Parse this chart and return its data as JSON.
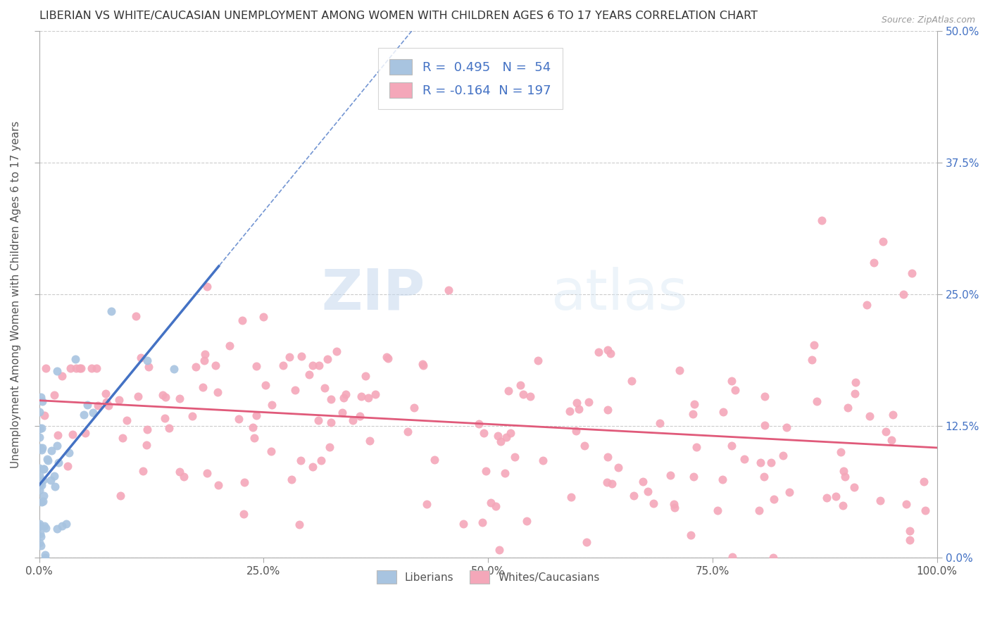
{
  "title": "LIBERIAN VS WHITE/CAUCASIAN UNEMPLOYMENT AMONG WOMEN WITH CHILDREN AGES 6 TO 17 YEARS CORRELATION CHART",
  "source": "Source: ZipAtlas.com",
  "ylabel": "Unemployment Among Women with Children Ages 6 to 17 years",
  "xlim": [
    0,
    1.0
  ],
  "ylim": [
    0,
    0.5
  ],
  "xticks": [
    0,
    0.25,
    0.5,
    0.75,
    1.0
  ],
  "xtick_labels": [
    "0.0%",
    "25.0%",
    "50.0%",
    "75.0%",
    "100.0%"
  ],
  "yticks": [
    0,
    0.125,
    0.25,
    0.375,
    0.5
  ],
  "ytick_labels_right": [
    "0.0%",
    "12.5%",
    "25.0%",
    "37.5%",
    "50.0%"
  ],
  "liberian_R": 0.495,
  "liberian_N": 54,
  "white_R": -0.164,
  "white_N": 197,
  "liberian_color": "#a8c4e0",
  "liberian_line_color": "#4472c4",
  "white_color": "#f4a7b9",
  "white_line_color": "#e05a7a",
  "legend_text_color": "#4472c4",
  "watermark_zip": "ZIP",
  "watermark_atlas": "atlas",
  "background_color": "#ffffff",
  "grid_color": "#cccccc"
}
